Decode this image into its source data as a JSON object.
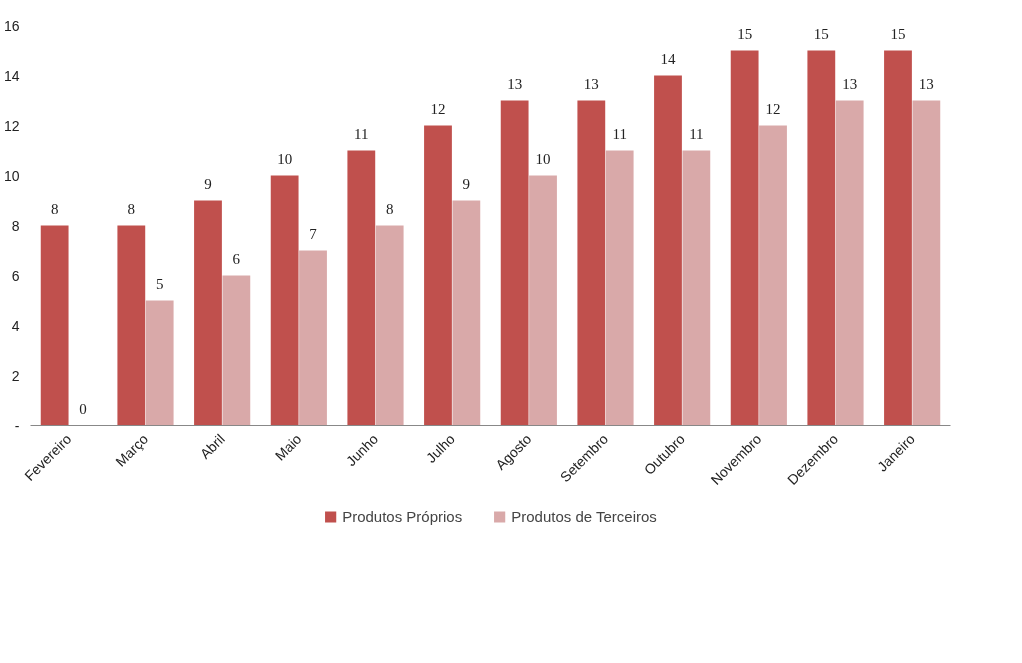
{
  "chart_data": {
    "type": "bar",
    "categories": [
      "Fevereiro",
      "Março",
      "Abril",
      "Maio",
      "Junho",
      "Julho",
      "Agosto",
      "Setembro",
      "Outubro",
      "Novembro",
      "Dezembro",
      "Janeiro"
    ],
    "series": [
      {
        "name": "Produtos Próprios",
        "color": "#c0504d",
        "values": [
          8,
          8,
          9,
          10,
          11,
          12,
          13,
          13,
          14,
          15,
          15,
          15
        ]
      },
      {
        "name": "Produtos de Terceiros",
        "color": "#d9a9a9",
        "values": [
          0,
          5,
          6,
          7,
          8,
          9,
          10,
          11,
          11,
          12,
          13,
          13
        ]
      }
    ],
    "ylim": [
      0,
      16
    ],
    "yticks": [
      {
        "value": 0,
        "label": "-"
      },
      2,
      4,
      6,
      8,
      10,
      12,
      14,
      16
    ],
    "data_labels": true,
    "grid": false,
    "legend": "bottom"
  }
}
